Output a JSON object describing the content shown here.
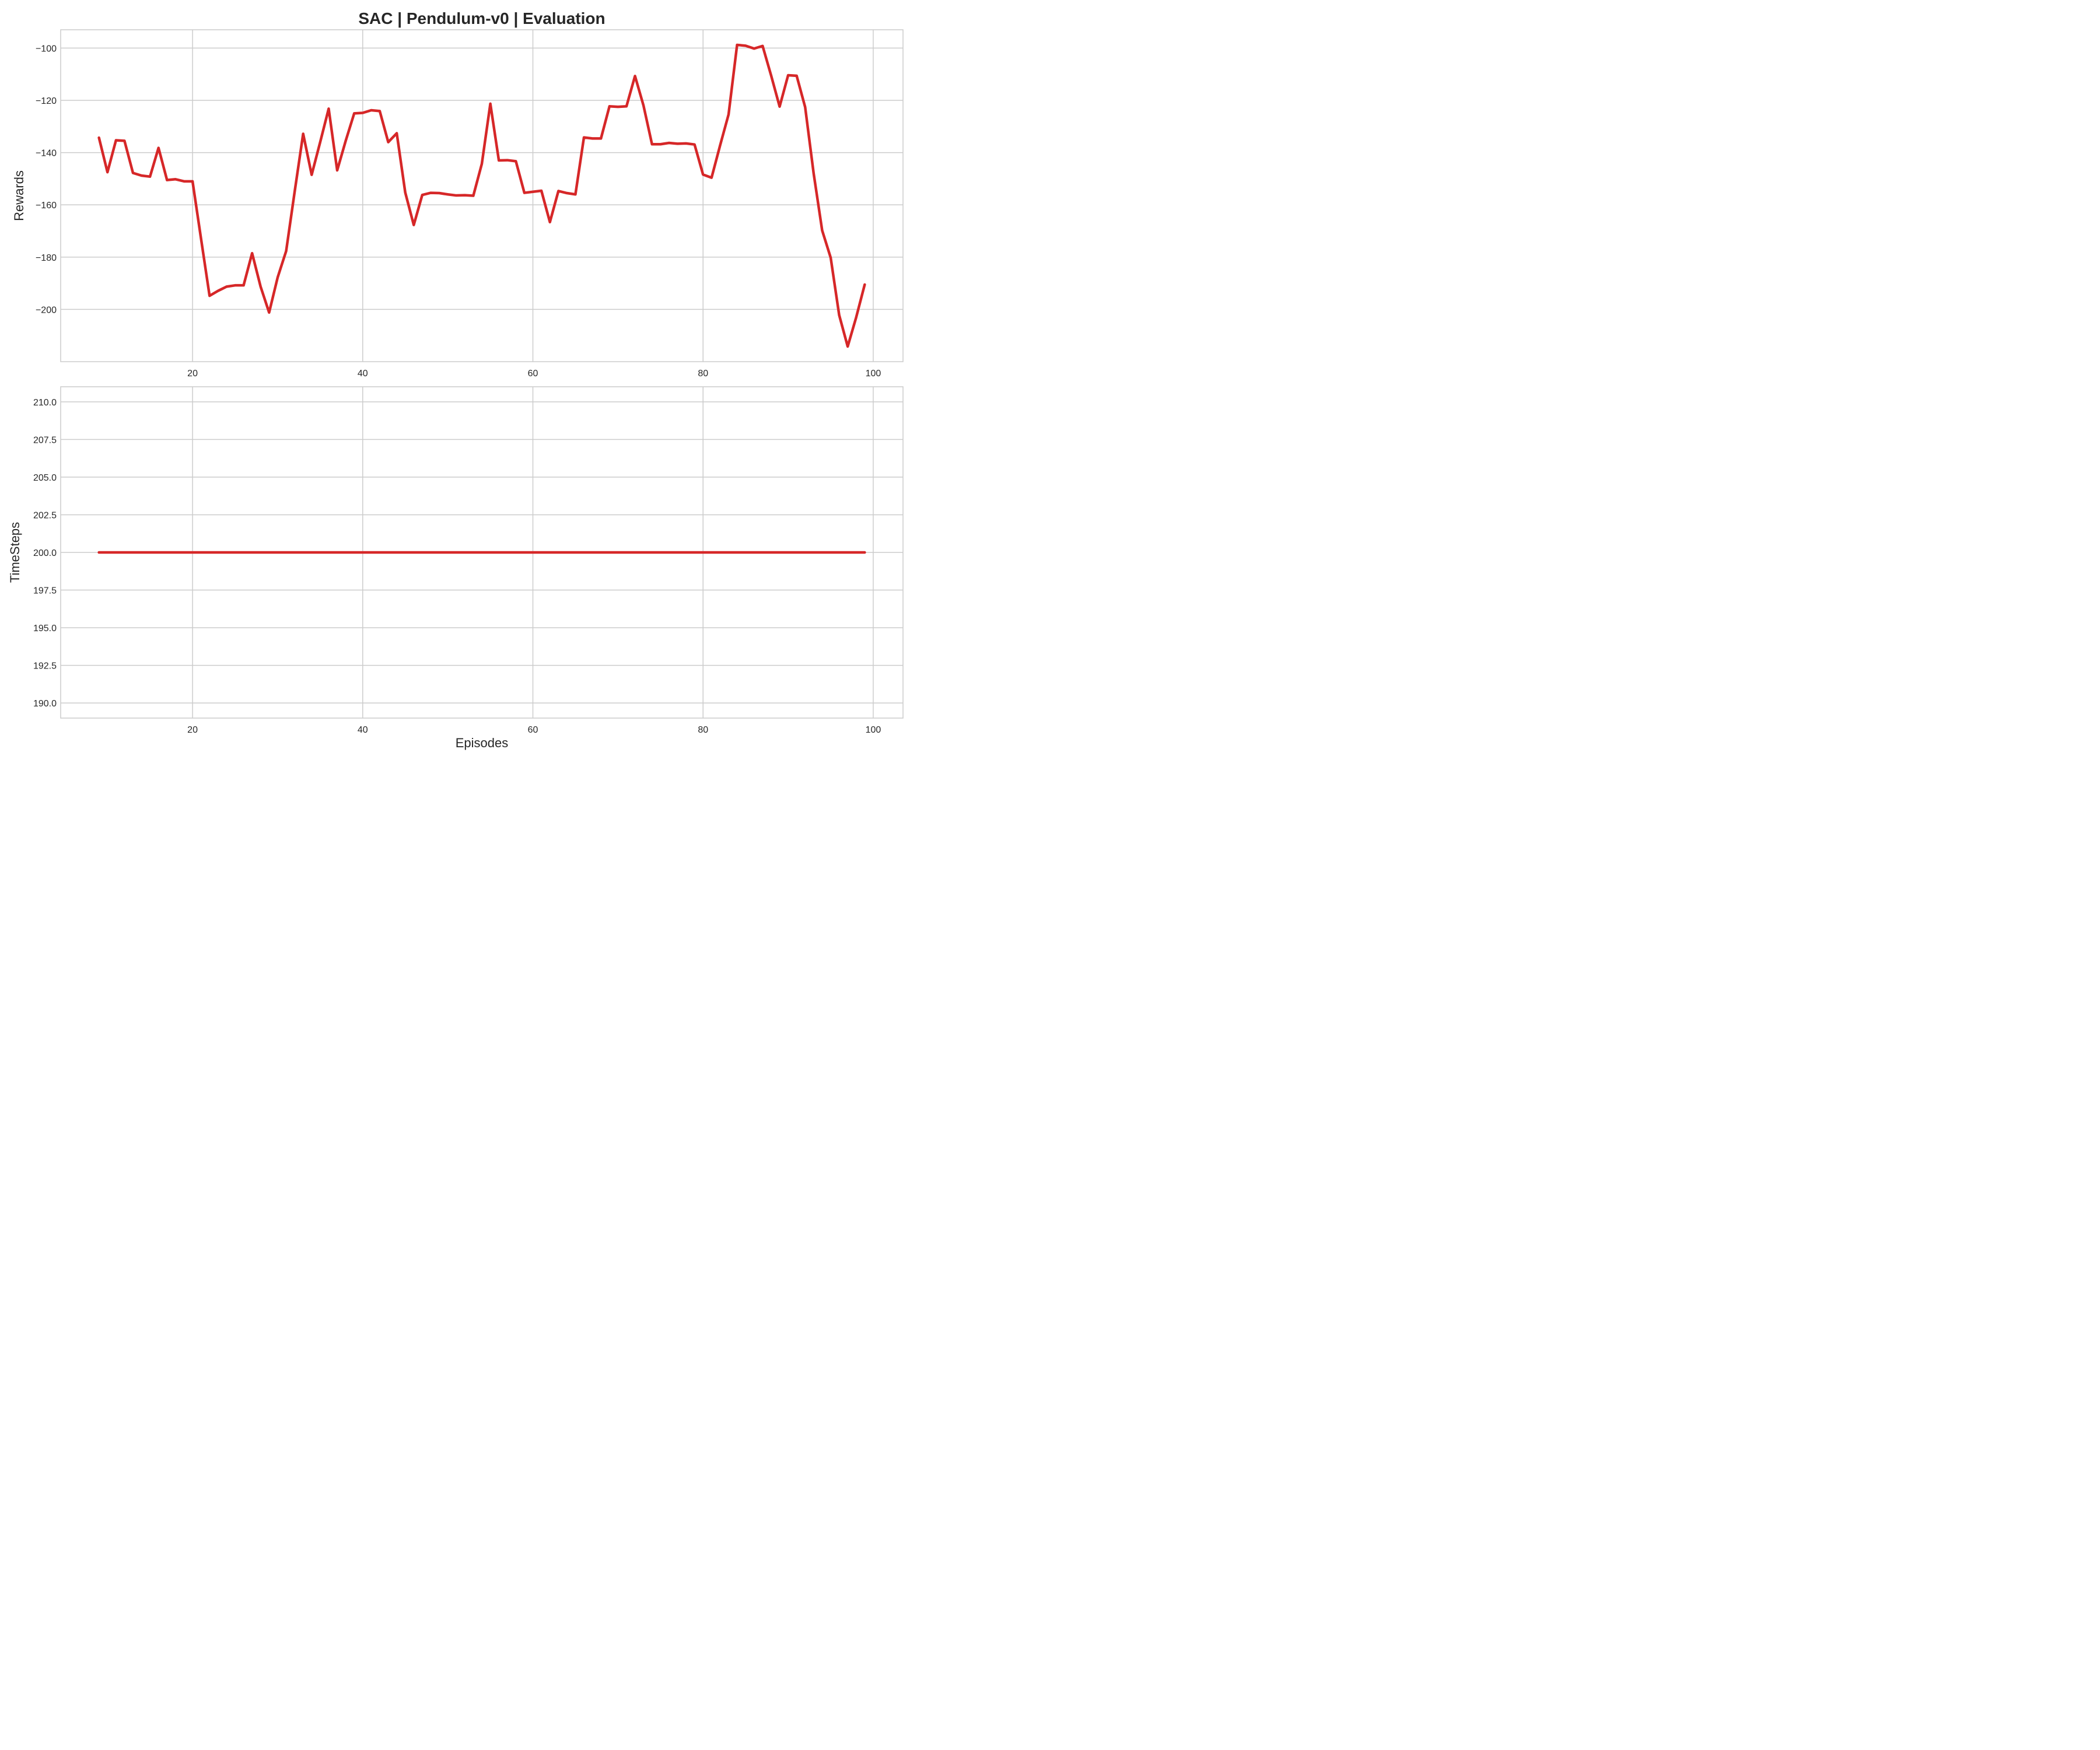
{
  "title": "SAC | Pendulum-v0 | Evaluation",
  "colors": {
    "line": "#d62728",
    "grid": "#cccccc",
    "frame": "#cccccc",
    "text": "#262626",
    "background": "#ffffff"
  },
  "chart_data": [
    {
      "type": "line",
      "title": "SAC | Pendulum-v0 | Evaluation",
      "xlabel": "",
      "ylabel": "Rewards",
      "xlim": [
        4.5,
        103.5
      ],
      "ylim": [
        -220,
        -93
      ],
      "grid": true,
      "xticks": [
        {
          "value": 20,
          "label": "20"
        },
        {
          "value": 40,
          "label": "40"
        },
        {
          "value": 60,
          "label": "60"
        },
        {
          "value": 80,
          "label": "80"
        },
        {
          "value": 100,
          "label": "100"
        }
      ],
      "yticks": [
        {
          "value": -100,
          "label": "−100"
        },
        {
          "value": -120,
          "label": "−120"
        },
        {
          "value": -140,
          "label": "−140"
        },
        {
          "value": -160,
          "label": "−160"
        },
        {
          "value": -180,
          "label": "−180"
        },
        {
          "value": -200,
          "label": "−200"
        }
      ],
      "x": [
        9,
        10,
        11,
        12,
        13,
        14,
        15,
        16,
        17,
        18,
        19,
        20,
        21,
        22,
        23,
        24,
        25,
        26,
        27,
        28,
        29,
        30,
        31,
        32,
        33,
        34,
        35,
        36,
        37,
        38,
        39,
        40,
        41,
        42,
        43,
        44,
        45,
        46,
        47,
        48,
        49,
        50,
        51,
        52,
        53,
        54,
        55,
        56,
        57,
        58,
        59,
        60,
        61,
        62,
        63,
        64,
        65,
        66,
        67,
        68,
        69,
        70,
        71,
        72,
        73,
        74,
        75,
        76,
        77,
        78,
        79,
        80,
        81,
        82,
        83,
        84,
        85,
        86,
        87,
        88,
        89,
        90,
        91,
        92,
        93,
        94,
        95,
        96,
        97,
        98,
        99
      ],
      "series": [
        {
          "values": [
            -134.3,
            -147.5,
            -135.3,
            -135.5,
            -147.8,
            -148.8,
            -149.2,
            -138.2,
            -150.5,
            -150.2,
            -151.0,
            -151.0,
            -173.0,
            -194.8,
            -192.9,
            -191.3,
            -190.8,
            -190.8,
            -178.5,
            -191.3,
            -201.2,
            -187.8,
            -177.7,
            -155.0,
            -132.8,
            -148.5,
            -136.0,
            -123.2,
            -146.8,
            -135.5,
            -125.0,
            -124.8,
            -123.8,
            -124.1,
            -136.0,
            -132.6,
            -155.3,
            -167.7,
            -156.2,
            -155.4,
            -155.5,
            -156.0,
            -156.4,
            -156.3,
            -156.5,
            -144.3,
            -121.3,
            -143.0,
            -142.9,
            -143.3,
            -155.4,
            -155.0,
            -154.6,
            -166.6,
            -154.7,
            -155.5,
            -156.0,
            -134.2,
            -134.6,
            -134.6,
            -122.3,
            -122.5,
            -122.3,
            -110.7,
            -122.0,
            -136.8,
            -136.8,
            -136.3,
            -136.6,
            -136.5,
            -136.9,
            -148.4,
            -149.6,
            -137.3,
            -125.4,
            -98.8,
            -99.1,
            -100.2,
            -99.2,
            -110.5,
            -122.4,
            -110.4,
            -110.6,
            -122.6,
            -148.0,
            -169.8,
            -180.2,
            -202.2,
            -214.2,
            -203.0,
            -190.5
          ]
        }
      ]
    },
    {
      "type": "line",
      "title": "",
      "xlabel": "Episodes",
      "ylabel": "TimeSteps",
      "xlim": [
        4.5,
        103.5
      ],
      "ylim": [
        189.0,
        211.0
      ],
      "grid": true,
      "xticks": [
        {
          "value": 20,
          "label": "20"
        },
        {
          "value": 40,
          "label": "40"
        },
        {
          "value": 60,
          "label": "60"
        },
        {
          "value": 80,
          "label": "80"
        },
        {
          "value": 100,
          "label": "100"
        }
      ],
      "yticks": [
        {
          "value": 210.0,
          "label": "210.0"
        },
        {
          "value": 207.5,
          "label": "207.5"
        },
        {
          "value": 205.0,
          "label": "205.0"
        },
        {
          "value": 202.5,
          "label": "202.5"
        },
        {
          "value": 200.0,
          "label": "200.0"
        },
        {
          "value": 197.5,
          "label": "197.5"
        },
        {
          "value": 195.0,
          "label": "195.0"
        },
        {
          "value": 192.5,
          "label": "192.5"
        },
        {
          "value": 190.0,
          "label": "190.0"
        }
      ],
      "x": [
        9,
        99
      ],
      "series": [
        {
          "values": [
            200.0,
            200.0
          ]
        }
      ]
    }
  ]
}
